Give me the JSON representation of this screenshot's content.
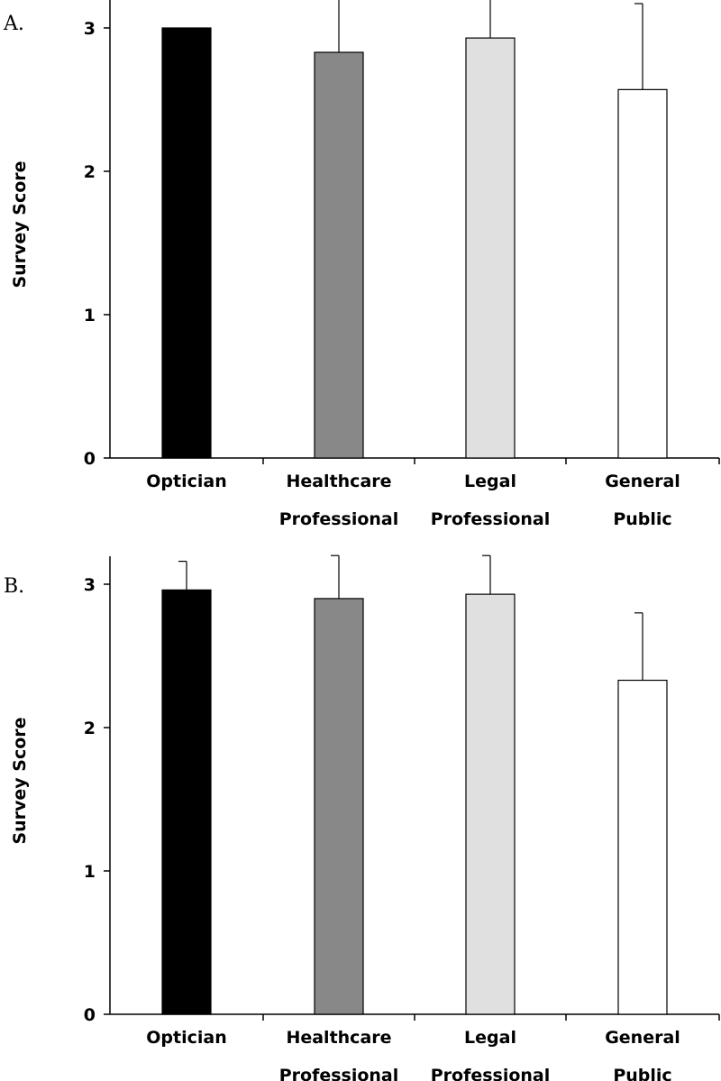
{
  "chart_data": [
    {
      "type": "bar",
      "panel_label": "A.",
      "categories": [
        [
          "Optician"
        ],
        [
          "Healthcare",
          "Professional"
        ],
        [
          "Legal",
          "Professional"
        ],
        [
          "General",
          "Public"
        ]
      ],
      "values": [
        3.0,
        2.83,
        2.93,
        2.57
      ],
      "error_plus": [
        0.0,
        0.5,
        0.42,
        0.6
      ],
      "colors": [
        "#000000",
        "#888888",
        "#e0e0e0",
        "#ffffff"
      ],
      "ylabel": "Survey Score",
      "ylim": [
        0,
        3
      ],
      "yticks": [
        0,
        1,
        2,
        3
      ],
      "grid": false
    },
    {
      "type": "bar",
      "panel_label": "B.",
      "categories": [
        [
          "Optician"
        ],
        [
          "Healthcare",
          "Professional"
        ],
        [
          "Legal",
          "Professional"
        ],
        [
          "General",
          "Public"
        ]
      ],
      "values": [
        2.96,
        2.9,
        2.93,
        2.33
      ],
      "error_plus": [
        0.2,
        0.3,
        0.27,
        0.47
      ],
      "colors": [
        "#000000",
        "#888888",
        "#e0e0e0",
        "#ffffff"
      ],
      "ylabel": "Survey Score",
      "ylim": [
        0,
        3
      ],
      "yticks": [
        0,
        1,
        2,
        3
      ],
      "grid": false
    }
  ]
}
